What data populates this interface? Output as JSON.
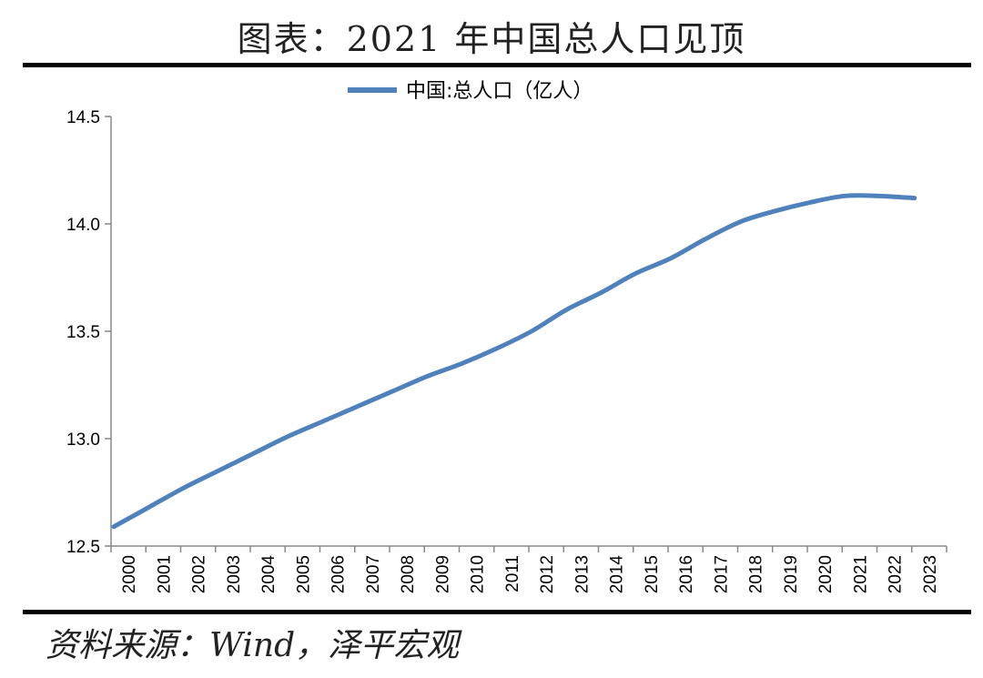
{
  "page": {
    "title": "图表：2021 年中国总人口见顶",
    "source": "资料来源：Wind，泽平宏观"
  },
  "chart_data": {
    "type": "line",
    "x": [
      "2000",
      "2001",
      "2002",
      "2003",
      "2004",
      "2005",
      "2006",
      "2007",
      "2008",
      "2009",
      "2010",
      "2011",
      "2012",
      "2013",
      "2014",
      "2015",
      "2016",
      "2017",
      "2018",
      "2019",
      "2020",
      "2021",
      "2022",
      "2023"
    ],
    "series": [
      {
        "name": "中国:总人口（亿人）",
        "color": "#4F81BD",
        "values": [
          12.59,
          12.68,
          12.77,
          12.85,
          12.93,
          13.01,
          13.08,
          13.15,
          13.22,
          13.29,
          13.35,
          13.42,
          13.5,
          13.6,
          13.68,
          13.77,
          13.84,
          13.93,
          14.01,
          14.06,
          14.1,
          14.13,
          14.13,
          14.12
        ]
      }
    ],
    "ylim": [
      12.5,
      14.5
    ],
    "yticks": [
      "12.5",
      "13.0",
      "13.5",
      "14.0",
      "14.5"
    ],
    "legend_position": "top-center",
    "grid": false
  }
}
